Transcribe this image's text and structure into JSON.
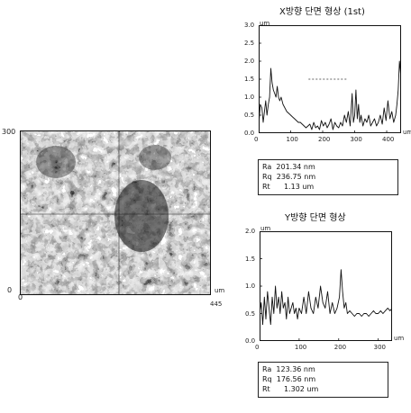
{
  "surface_map": {
    "y_top": "300",
    "y_bottom": "0",
    "x_left": "0",
    "x_unit": "um",
    "x_right": "445"
  },
  "chart_data": [
    {
      "type": "line",
      "title": "X방향 단면 형상 (1st)",
      "y_unit": "um",
      "x_unit": "um",
      "ylim": [
        0,
        3.0
      ],
      "xlim": [
        0,
        445
      ],
      "y_ticks": [
        "3.0",
        "2.5",
        "2.0",
        "1.5",
        "1.0",
        "0.5",
        "0.0"
      ],
      "x_ticks": [
        "0",
        "100",
        "200",
        "300",
        "400"
      ],
      "x": [
        0,
        5,
        10,
        14,
        18,
        22,
        26,
        30,
        34,
        38,
        42,
        46,
        50,
        54,
        58,
        62,
        66,
        70,
        76,
        82,
        88,
        94,
        100,
        106,
        112,
        118,
        124,
        130,
        136,
        142,
        148,
        154,
        160,
        166,
        172,
        178,
        184,
        190,
        196,
        202,
        208,
        214,
        220,
        226,
        232,
        238,
        244,
        250,
        256,
        262,
        268,
        274,
        280,
        286,
        292,
        296,
        300,
        304,
        308,
        312,
        316,
        320,
        326,
        332,
        338,
        344,
        350,
        356,
        362,
        368,
        374,
        380,
        386,
        392,
        398,
        404,
        410,
        416,
        422,
        428,
        432,
        436,
        440,
        445
      ],
      "values": [
        0.2,
        0.8,
        0.7,
        0.3,
        0.6,
        0.9,
        0.5,
        0.8,
        1.0,
        1.8,
        1.4,
        1.2,
        1.1,
        1.0,
        1.3,
        1.0,
        0.9,
        1.0,
        0.8,
        0.7,
        0.6,
        0.55,
        0.5,
        0.45,
        0.4,
        0.35,
        0.3,
        0.3,
        0.25,
        0.2,
        0.15,
        0.2,
        0.25,
        0.1,
        0.3,
        0.15,
        0.2,
        0.1,
        0.35,
        0.2,
        0.3,
        0.15,
        0.25,
        0.4,
        0.1,
        0.3,
        0.2,
        0.15,
        0.3,
        0.2,
        0.5,
        0.3,
        0.6,
        0.2,
        1.1,
        0.3,
        0.5,
        1.2,
        0.4,
        0.8,
        0.3,
        0.5,
        0.2,
        0.4,
        0.3,
        0.5,
        0.2,
        0.3,
        0.4,
        0.2,
        0.3,
        0.5,
        0.25,
        0.7,
        0.35,
        0.9,
        0.4,
        0.6,
        0.3,
        0.5,
        0.8,
        1.2,
        2.0,
        1.5
      ],
      "ref_line": 1.5,
      "stats": [
        {
          "label": "Ra",
          "value": "201.34 nm"
        },
        {
          "label": "Rq",
          "value": "236.75 nm"
        },
        {
          "label": "Rt",
          "value": "1.13 um"
        }
      ]
    },
    {
      "type": "line",
      "title": "Y방향 단면 형상",
      "y_unit": "um",
      "x_unit": "um",
      "ylim": [
        0,
        2.0
      ],
      "xlim": [
        0,
        335
      ],
      "y_ticks": [
        "2.0",
        "1.5",
        "1.0",
        "0.5",
        "0.0"
      ],
      "x_ticks": [
        "0",
        "100",
        "200",
        "300"
      ],
      "x": [
        0,
        4,
        8,
        12,
        16,
        20,
        24,
        28,
        32,
        36,
        40,
        44,
        48,
        52,
        56,
        60,
        64,
        68,
        72,
        76,
        80,
        84,
        88,
        92,
        96,
        100,
        106,
        112,
        118,
        124,
        130,
        136,
        142,
        148,
        154,
        160,
        166,
        172,
        178,
        184,
        190,
        196,
        202,
        206,
        210,
        214,
        218,
        222,
        228,
        234,
        240,
        246,
        252,
        258,
        264,
        270,
        276,
        282,
        288,
        294,
        300,
        306,
        312,
        318,
        324,
        330,
        335
      ],
      "values": [
        0.5,
        0.7,
        0.3,
        0.8,
        0.4,
        0.9,
        0.6,
        0.3,
        0.8,
        0.5,
        1.0,
        0.6,
        0.8,
        0.5,
        0.9,
        0.6,
        0.7,
        0.4,
        0.8,
        0.5,
        0.6,
        0.7,
        0.5,
        0.6,
        0.4,
        0.6,
        0.5,
        0.8,
        0.5,
        0.9,
        0.6,
        0.5,
        0.8,
        0.6,
        1.0,
        0.7,
        0.6,
        0.9,
        0.5,
        0.7,
        0.5,
        0.6,
        0.8,
        1.3,
        0.9,
        0.6,
        0.7,
        0.5,
        0.55,
        0.5,
        0.45,
        0.5,
        0.5,
        0.45,
        0.5,
        0.5,
        0.45,
        0.5,
        0.55,
        0.5,
        0.5,
        0.55,
        0.5,
        0.55,
        0.6,
        0.55,
        0.6
      ],
      "stats": [
        {
          "label": "Ra",
          "value": "123.36 nm"
        },
        {
          "label": "Rq",
          "value": "176.56 nm"
        },
        {
          "label": "Rt",
          "value": "1.302 um"
        }
      ]
    }
  ]
}
